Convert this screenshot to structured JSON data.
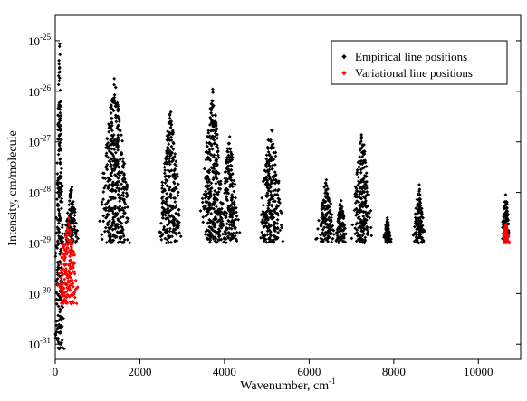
{
  "chart_data": {
    "type": "scatter",
    "title": "",
    "xlabel": "Wavenumber, cm",
    "xlabel_superscript": "-1",
    "ylabel": "Intensity, cm/molecule",
    "xlim": [
      0,
      11000
    ],
    "ylim_log10": [
      -31.3,
      -24.5
    ],
    "y_scale": "log",
    "grid": false,
    "legend_position": "top-right",
    "x_ticks": [
      0,
      2000,
      4000,
      6000,
      8000,
      10000
    ],
    "x_tick_labels": [
      "0",
      "2000",
      "4000",
      "6000",
      "8000",
      "10000"
    ],
    "y_ticks_log10": [
      -25,
      -26,
      -27,
      -28,
      -29,
      -30,
      -31
    ],
    "y_tick_bases": [
      "10",
      "10",
      "10",
      "10",
      "10",
      "10",
      "10"
    ],
    "y_tick_exponents": [
      "-25",
      "-26",
      "-27",
      "-28",
      "-29",
      "-30",
      "-31"
    ],
    "series": [
      {
        "name": "Empirical line positions",
        "color": "#000000",
        "marker": "diamond",
        "bands": [
          {
            "center": 100,
            "half_width": 120,
            "peak_log10": -24.7,
            "floor_log10": -31.1
          },
          {
            "center": 380,
            "half_width": 180,
            "peak_log10": -27.8,
            "floor_log10": -29.0
          },
          {
            "center": 1400,
            "half_width": 430,
            "peak_log10": -25.7,
            "floor_log10": -29.0
          },
          {
            "center": 2720,
            "half_width": 310,
            "peak_log10": -26.3,
            "floor_log10": -29.0
          },
          {
            "center": 3720,
            "half_width": 340,
            "peak_log10": -25.9,
            "floor_log10": -29.0
          },
          {
            "center": 4120,
            "half_width": 260,
            "peak_log10": -26.8,
            "floor_log10": -29.0
          },
          {
            "center": 5100,
            "half_width": 330,
            "peak_log10": -26.5,
            "floor_log10": -29.0
          },
          {
            "center": 6400,
            "half_width": 260,
            "peak_log10": -27.7,
            "floor_log10": -29.0
          },
          {
            "center": 6750,
            "half_width": 150,
            "peak_log10": -28.1,
            "floor_log10": -29.0
          },
          {
            "center": 7250,
            "half_width": 270,
            "peak_log10": -26.7,
            "floor_log10": -29.0
          },
          {
            "center": 7850,
            "half_width": 110,
            "peak_log10": -28.5,
            "floor_log10": -29.0
          },
          {
            "center": 8600,
            "half_width": 160,
            "peak_log10": -27.8,
            "floor_log10": -29.0
          },
          {
            "center": 10650,
            "half_width": 130,
            "peak_log10": -28.0,
            "floor_log10": -29.0
          }
        ]
      },
      {
        "name": "Variational line positions",
        "color": "#ff0000",
        "marker": "diamond",
        "bands": [
          {
            "center": 300,
            "half_width": 300,
            "peak_log10": -28.4,
            "floor_log10": -30.2
          },
          {
            "center": 10650,
            "half_width": 90,
            "peak_log10": -28.6,
            "floor_log10": -29.0
          }
        ]
      }
    ]
  }
}
